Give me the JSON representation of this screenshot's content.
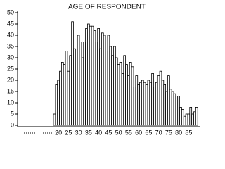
{
  "chart_data": {
    "type": "bar",
    "title": "AGE OF RESPONDENT",
    "categories": [
      null,
      null,
      "20",
      null,
      null,
      null,
      null,
      "25",
      null,
      null,
      null,
      null,
      "30",
      null,
      null,
      null,
      null,
      "35",
      null,
      null,
      null,
      null,
      "40",
      null,
      null,
      null,
      null,
      "45",
      null,
      null,
      null,
      null,
      "50",
      null,
      null,
      null,
      null,
      "55",
      null,
      null,
      null,
      null,
      "60",
      null,
      null,
      null,
      null,
      "65",
      null,
      null,
      null,
      null,
      "70",
      null,
      null,
      null,
      null,
      "75",
      null,
      null,
      null,
      null,
      "80",
      null,
      null,
      null,
      null,
      "85",
      null,
      null,
      null,
      null
    ],
    "values": [
      5,
      18,
      20,
      24,
      28,
      27,
      33,
      24,
      31,
      46,
      34,
      33,
      40,
      37,
      30,
      37,
      43,
      45,
      44,
      44,
      42,
      37,
      43,
      34,
      41,
      40,
      33,
      40,
      35,
      31,
      35,
      30,
      27,
      28,
      23,
      31,
      27,
      22,
      28,
      26,
      17,
      22,
      18,
      19,
      20,
      19,
      18,
      20,
      19,
      23,
      17,
      19,
      22,
      24,
      20,
      18,
      15,
      22,
      16,
      15,
      14,
      13,
      13,
      8,
      7,
      4,
      5,
      5,
      8,
      5,
      6,
      8
    ],
    "color": "#ffffff",
    "ylim": [
      0,
      50
    ],
    "yticks": [
      0,
      5,
      10,
      15,
      20,
      25,
      30,
      35,
      40,
      45,
      50
    ]
  }
}
